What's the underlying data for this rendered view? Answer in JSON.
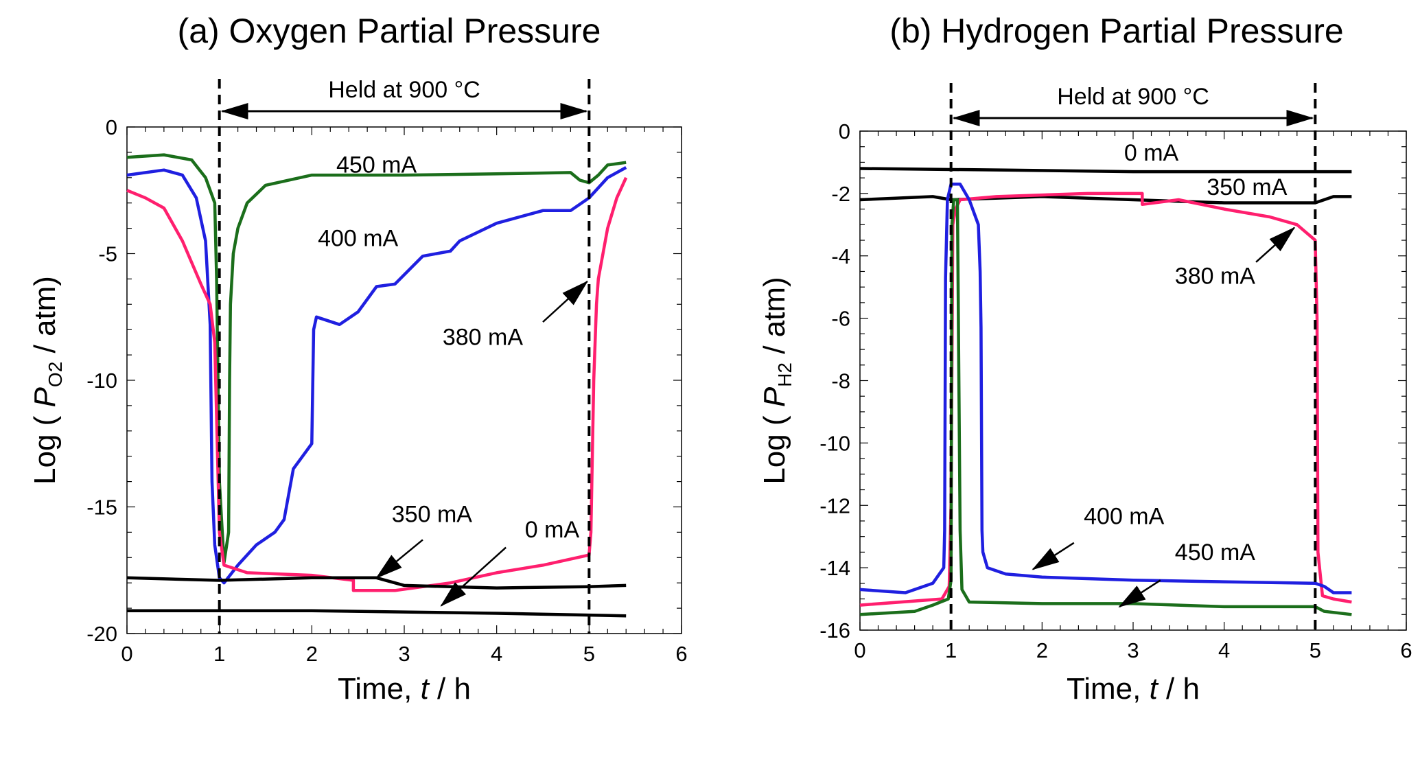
{
  "colors": {
    "450 mA": "#1b6e1b",
    "400 mA": "#1f1fe0",
    "380 mA": "#ff1f6e",
    "350 mA": "#000000",
    "0 mA": "#000000"
  },
  "chart_data": [
    {
      "type": "line",
      "title": "(a) Oxygen Partial Pressure",
      "xlabel_prefix": "Time, ",
      "xlabel_var": "t",
      "xlabel_suffix": " / h",
      "ylabel_prefix": "Log ( ",
      "ylabel_var": "P",
      "ylabel_sub": "O2",
      "ylabel_suffix": " / atm)",
      "xlim": [
        0,
        6
      ],
      "ylim": [
        -20,
        0
      ],
      "xticks": [
        "0",
        "1",
        "2",
        "3",
        "4",
        "5",
        "6"
      ],
      "yticks": [
        "0",
        "-5",
        "-10",
        "-15",
        "-20"
      ],
      "ytick_values": [
        0,
        -5,
        -10,
        -15,
        -20
      ],
      "hold_label": "Held at 900 °C",
      "hold_range": [
        1,
        5
      ],
      "series": [
        {
          "name": "450 mA",
          "x": [
            0,
            0.4,
            0.7,
            0.85,
            0.95,
            0.97,
            1.0,
            1.05,
            1.1,
            1.11,
            1.12,
            1.15,
            1.2,
            1.3,
            1.5,
            2,
            3,
            4,
            4.8,
            4.9,
            5.0,
            5.1,
            5.2,
            5.4
          ],
          "y": [
            -1.2,
            -1.1,
            -1.3,
            -2,
            -3,
            -6,
            -14,
            -17.2,
            -16,
            -10,
            -7,
            -5,
            -4,
            -3,
            -2.3,
            -1.9,
            -1.9,
            -1.85,
            -1.8,
            -2.1,
            -2.2,
            -1.9,
            -1.5,
            -1.4
          ]
        },
        {
          "name": "400 mA",
          "x": [
            0,
            0.4,
            0.6,
            0.75,
            0.85,
            0.9,
            0.92,
            0.95,
            1.0,
            1.05,
            1.2,
            1.4,
            1.6,
            1.7,
            1.8,
            1.9,
            2.0,
            2.02,
            2.05,
            2.3,
            2.5,
            2.7,
            2.9,
            3.2,
            3.5,
            3.6,
            4.0,
            4.5,
            4.8,
            5.0,
            5.2,
            5.4
          ],
          "y": [
            -1.9,
            -1.7,
            -1.9,
            -2.8,
            -4.5,
            -7.8,
            -14,
            -16.5,
            -17.8,
            -18,
            -17.3,
            -16.5,
            -16,
            -15.5,
            -13.5,
            -13,
            -12.5,
            -8,
            -7.5,
            -7.8,
            -7.3,
            -6.3,
            -6.2,
            -5.1,
            -4.9,
            -4.5,
            -3.8,
            -3.3,
            -3.3,
            -2.8,
            -2.0,
            -1.6
          ]
        },
        {
          "name": "380 mA",
          "x": [
            0,
            0.2,
            0.4,
            0.6,
            0.8,
            0.9,
            0.95,
            1.0,
            1.05,
            1.3,
            2.0,
            2.45,
            2.45,
            2.9,
            3.5,
            4.0,
            4.5,
            5.0,
            5.02,
            5.05,
            5.08,
            5.1,
            5.2,
            5.3,
            5.4
          ],
          "y": [
            -2.5,
            -2.8,
            -3.2,
            -4.5,
            -6.2,
            -7,
            -8.5,
            -16,
            -17.3,
            -17.6,
            -17.7,
            -17.9,
            -18.3,
            -18.3,
            -18,
            -17.6,
            -17.3,
            -16.9,
            -16,
            -10,
            -7,
            -6,
            -4,
            -2.8,
            -2
          ]
        },
        {
          "name": "350 mA",
          "x": [
            0,
            1,
            2,
            2.7,
            3,
            4,
            5,
            5.4
          ],
          "y": [
            -17.8,
            -17.9,
            -17.8,
            -17.8,
            -18.1,
            -18.2,
            -18.15,
            -18.1
          ]
        },
        {
          "name": "0 mA",
          "x": [
            0,
            2,
            4,
            5.4
          ],
          "y": [
            -19.1,
            -19.1,
            -19.2,
            -19.3
          ]
        }
      ],
      "annotations": [
        "450 mA",
        "400 mA",
        "380 mA",
        "350 mA",
        "0 mA"
      ]
    },
    {
      "type": "line",
      "title": "(b) Hydrogen Partial Pressure",
      "xlabel_prefix": "Time, ",
      "xlabel_var": "t",
      "xlabel_suffix": " / h",
      "ylabel_prefix": "Log ( ",
      "ylabel_var": "P",
      "ylabel_sub": "H2",
      "ylabel_suffix": " / atm)",
      "xlim": [
        0,
        6
      ],
      "ylim": [
        -16,
        0
      ],
      "xticks": [
        "0",
        "1",
        "2",
        "3",
        "4",
        "5",
        "6"
      ],
      "yticks": [
        "0",
        "-2",
        "-4",
        "-6",
        "-8",
        "-10",
        "-12",
        "-14",
        "-16"
      ],
      "ytick_values": [
        0,
        -2,
        -4,
        -6,
        -8,
        -10,
        -12,
        -14,
        -16
      ],
      "hold_label": "Held at 900 °C",
      "hold_range": [
        1,
        5
      ],
      "series": [
        {
          "name": "0 mA",
          "x": [
            0,
            1.6,
            3,
            5.4
          ],
          "y": [
            -1.2,
            -1.25,
            -1.3,
            -1.3
          ]
        },
        {
          "name": "350 mA",
          "x": [
            0,
            0.8,
            1.0,
            2,
            3,
            4,
            5,
            5.2,
            5.4
          ],
          "y": [
            -2.2,
            -2.1,
            -2.2,
            -2.1,
            -2.2,
            -2.3,
            -2.3,
            -2.1,
            -2.1
          ]
        },
        {
          "name": "380 mA",
          "x": [
            0,
            0.9,
            0.98,
            1.0,
            1.02,
            1.05,
            1.1,
            1.5,
            2,
            2.5,
            3.1,
            3.1,
            3.5,
            4,
            4.5,
            4.8,
            5.0,
            5.02,
            5.03,
            5.08,
            5.2,
            5.4
          ],
          "y": [
            -15.2,
            -15,
            -14.6,
            -12,
            -3,
            -2.5,
            -2.2,
            -2.1,
            -2.05,
            -2.0,
            -2.0,
            -2.35,
            -2.2,
            -2.5,
            -2.75,
            -3,
            -3.5,
            -6,
            -13.5,
            -14.9,
            -15.0,
            -15.1
          ]
        },
        {
          "name": "400 mA",
          "x": [
            0,
            0.5,
            0.8,
            0.92,
            0.93,
            0.94,
            0.96,
            1.0,
            1.1,
            1.2,
            1.3,
            1.32,
            1.33,
            1.34,
            1.35,
            1.4,
            1.6,
            2,
            3,
            4,
            5,
            5.1,
            5.2,
            5.4
          ],
          "y": [
            -14.7,
            -14.8,
            -14.5,
            -14,
            -12.8,
            -4.7,
            -2.2,
            -1.7,
            -1.7,
            -2.2,
            -3,
            -4.5,
            -6.3,
            -12.8,
            -13.5,
            -14,
            -14.2,
            -14.3,
            -14.4,
            -14.45,
            -14.5,
            -14.6,
            -14.8,
            -14.8
          ]
        },
        {
          "name": "450 mA",
          "x": [
            0,
            0.6,
            0.8,
            0.97,
            1.0,
            1.01,
            1.03,
            1.07,
            1.1,
            1.12,
            1.2,
            2,
            3,
            4,
            5,
            5.1,
            5.4
          ],
          "y": [
            -15.5,
            -15.4,
            -15.2,
            -15,
            -14.4,
            -3,
            -2.2,
            -2.2,
            -12.8,
            -14.7,
            -15.1,
            -15.15,
            -15.15,
            -15.25,
            -15.25,
            -15.4,
            -15.5
          ]
        }
      ],
      "annotations": [
        "0 mA",
        "350 mA",
        "380 mA",
        "400 mA",
        "450 mA"
      ]
    }
  ]
}
